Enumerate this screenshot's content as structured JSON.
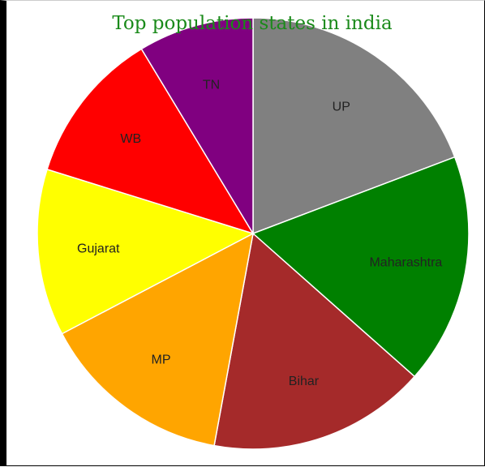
{
  "chart_data": {
    "type": "pie",
    "title": "Top population states in india",
    "categories": [
      "UP",
      "Maharashtra",
      "Bihar",
      "MP",
      "Gujarat",
      "WB",
      "TN"
    ],
    "values": [
      20,
      18,
      17,
      15,
      13,
      12,
      9
    ],
    "colors": [
      "#808080",
      "#008000",
      "#a52a2a",
      "#ffa500",
      "#ffff00",
      "#ff0000",
      "#800080"
    ],
    "legend": "none"
  }
}
